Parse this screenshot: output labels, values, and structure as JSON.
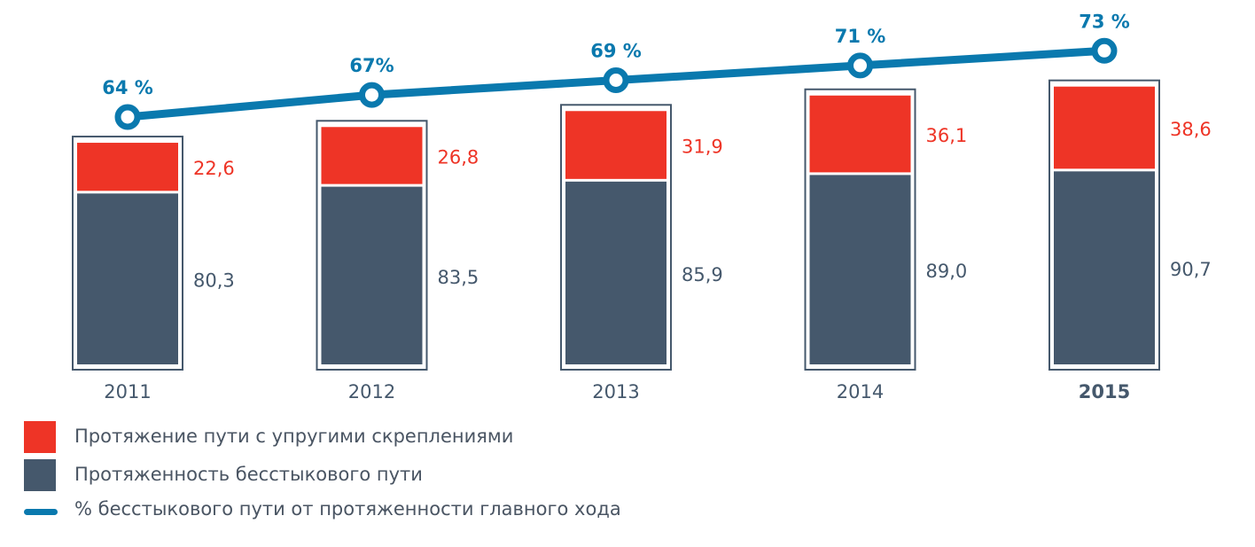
{
  "chart_data": {
    "type": "bar",
    "stacked": true,
    "categories": [
      "2011",
      "2012",
      "2013",
      "2014",
      "2015"
    ],
    "highlight_category": "2015",
    "series": [
      {
        "name": "Протяженность бесстыкового пути",
        "values": [
          80.3,
          83.5,
          85.9,
          89.0,
          90.7
        ],
        "labels": [
          "80,3",
          "83,5",
          "85,9",
          "89,0",
          "90,7"
        ],
        "color": "#45586c"
      },
      {
        "name": "Протяжение пути с упругими скреплениями",
        "values": [
          22.6,
          26.8,
          31.9,
          36.1,
          38.6
        ],
        "labels": [
          "22,6",
          "26,8",
          "31,9",
          "36,1",
          "38,6"
        ],
        "color": "#ee3426"
      }
    ],
    "line_series": {
      "name": "% бесстыкового пути от протяженности главного хода",
      "values": [
        64,
        67,
        69,
        71,
        73
      ],
      "labels": [
        "64 %",
        "67%",
        "69 %",
        "71 %",
        "73 %"
      ],
      "color": "#0a79ae"
    }
  },
  "legend": [
    {
      "label": "Протяжение пути с упругими скреплениями",
      "color": "#ee3426",
      "kind": "box"
    },
    {
      "label": "Протяженность бесстыкового пути",
      "color": "#45586c",
      "kind": "box"
    },
    {
      "label": "% бесстыкового пути от протяженности главного хода",
      "color": "#0a79ae",
      "kind": "line"
    }
  ]
}
